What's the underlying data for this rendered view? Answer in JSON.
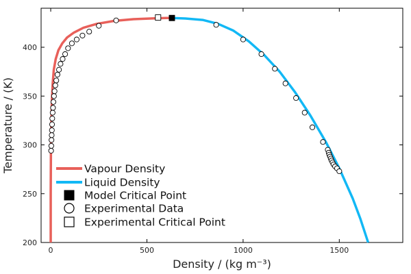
{
  "chart_data": {
    "type": "scatter",
    "xlabel": "Density / (kg m⁻³)",
    "ylabel": "Temperature / (K)",
    "xlim": [
      -50,
      1830
    ],
    "ylim": [
      200,
      440
    ],
    "xticks": [
      0,
      500,
      1000,
      1500
    ],
    "yticks": [
      200,
      250,
      300,
      350,
      400
    ],
    "grid": false,
    "legend_position": "bottom-left",
    "colors": {
      "vapour": "#e8605a",
      "liquid": "#12b8f5",
      "marker": "#000000"
    },
    "series": [
      {
        "name": "Vapour Density",
        "kind": "line",
        "color": "#e8605a",
        "x": [
          0,
          0,
          1,
          3,
          6,
          10,
          16,
          26,
          40,
          60,
          85,
          120,
          170,
          240,
          330,
          430,
          530,
          600,
          630
        ],
        "y": [
          200,
          250,
          290,
          320,
          345,
          362,
          377,
          388,
          397,
          404,
          410,
          415,
          420,
          424,
          427,
          428.8,
          429.6,
          430,
          430
        ]
      },
      {
        "name": "Liquid Density",
        "kind": "line",
        "color": "#12b8f5",
        "x": [
          630,
          700,
          790,
          870,
          950,
          1030,
          1110,
          1190,
          1270,
          1350,
          1430,
          1500,
          1570,
          1610,
          1650
        ],
        "y": [
          430,
          429.5,
          428,
          424,
          417,
          406,
          392,
          375,
          354,
          330,
          303,
          276,
          245,
          224,
          200
        ]
      },
      {
        "name": "Model Critical Point",
        "kind": "square-filled",
        "x": [
          630
        ],
        "y": [
          430
        ]
      },
      {
        "name": "Experimental Data",
        "kind": "circle-open",
        "x": [
          2,
          3,
          4,
          5,
          6,
          7,
          8,
          10,
          12,
          14,
          17,
          20,
          24,
          29,
          35,
          43,
          51,
          62,
          75,
          90,
          110,
          135,
          165,
          200,
          250,
          340,
          860,
          1000,
          1095,
          1165,
          1220,
          1275,
          1320,
          1360,
          1415,
          1440,
          1445,
          1448,
          1452,
          1456,
          1460,
          1465,
          1470,
          1478,
          1488,
          1500
        ],
        "y": [
          294,
          299,
          305,
          310,
          315,
          321,
          327,
          333,
          338,
          344,
          350,
          355,
          361,
          366,
          372,
          377,
          383,
          388,
          393,
          399,
          404,
          408,
          412,
          416,
          422,
          427.5,
          423,
          408,
          393,
          378,
          363,
          348,
          333,
          318,
          303,
          295,
          292,
          290,
          288,
          286,
          284,
          282,
          280,
          278,
          276,
          273
        ]
      },
      {
        "name": "Experimental Critical Point",
        "kind": "square-open",
        "x": [
          558
        ],
        "y": [
          430.5
        ]
      }
    ]
  }
}
